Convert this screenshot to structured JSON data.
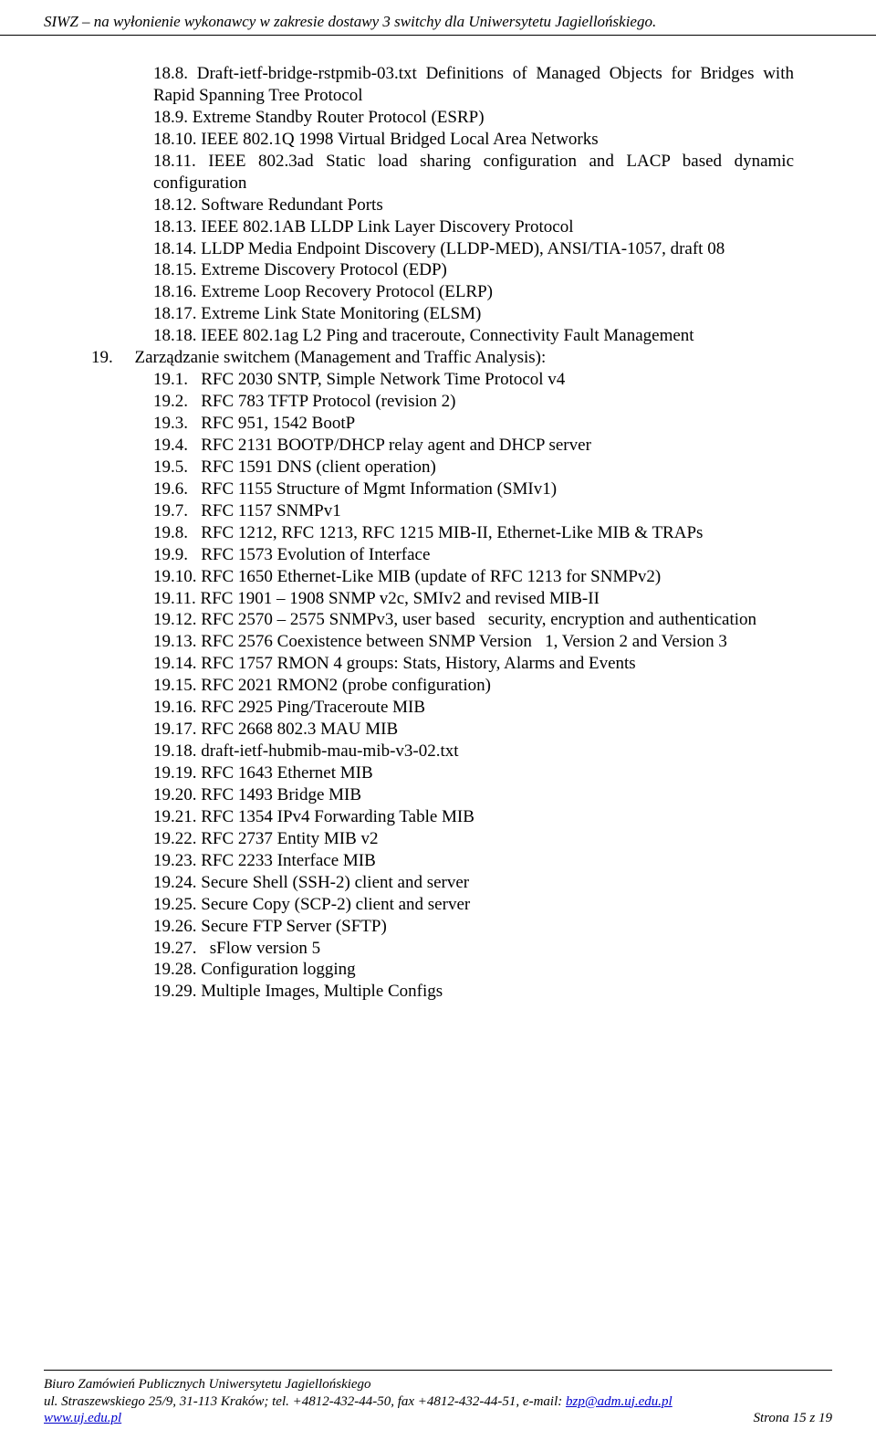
{
  "header": {
    "text": "SIWZ – na wyłonienie wykonawcy w zakresie dostawy 3 switchy dla Uniwersytetu Jagiellońskiego."
  },
  "lines": [
    {
      "cls": "indent-a line",
      "t": "18.8. Draft-ietf-bridge-rstpmib-03.txt Definitions of Managed Objects for Bridges with Rapid Spanning Tree Protocol"
    },
    {
      "cls": "indent-a line-left",
      "t": "18.9. Extreme Standby Router Protocol (ESRP)"
    },
    {
      "cls": "indent-a line-left",
      "t": "18.10. IEEE 802.1Q 1998 Virtual Bridged Local Area Networks"
    },
    {
      "cls": "indent-a line",
      "t": "18.11. IEEE 802.3ad Static load sharing configuration and LACP based dynamic configuration"
    },
    {
      "cls": "indent-a line-left",
      "t": "18.12. Software Redundant Ports"
    },
    {
      "cls": "indent-a line-left",
      "t": "18.13. IEEE 802.1AB LLDP Link Layer Discovery Protocol"
    },
    {
      "cls": "indent-a line",
      "t": "18.14. LLDP Media Endpoint Discovery (LLDP-MED), ANSI/TIA-1057, draft 08"
    },
    {
      "cls": "indent-a line-left",
      "t": "18.15. Extreme Discovery Protocol (EDP)"
    },
    {
      "cls": "indent-a line-left",
      "t": "18.16. Extreme Loop Recovery Protocol (ELRP)"
    },
    {
      "cls": "indent-a line-left",
      "t": "18.17. Extreme Link State Monitoring (ELSM)"
    },
    {
      "cls": "indent-a line-left",
      "t": "18.18. IEEE 802.1ag L2 Ping and traceroute, Connectivity Fault Management"
    },
    {
      "cls": "line-left",
      "t": "19.  Zarządzanie switchem (Management and Traffic Analysis):"
    },
    {
      "cls": "indent-a line-left",
      "t": "19.1.  RFC 2030 SNTP, Simple Network Time Protocol v4"
    },
    {
      "cls": "indent-a line-left",
      "t": "19.2.  RFC 783 TFTP Protocol (revision 2)"
    },
    {
      "cls": "indent-a line-left",
      "t": "19.3.  RFC 951, 1542 BootP"
    },
    {
      "cls": "indent-a line-left",
      "t": "19.4.  RFC 2131 BOOTP/DHCP relay agent and DHCP server"
    },
    {
      "cls": "indent-a line-left",
      "t": "19.5.  RFC 1591 DNS (client operation)"
    },
    {
      "cls": "indent-a line-left",
      "t": "19.6.  RFC 1155 Structure of Mgmt Information (SMIv1)"
    },
    {
      "cls": "indent-a line-left",
      "t": "19.7.  RFC 1157 SNMPv1"
    },
    {
      "cls": "indent-a line",
      "t": "19.8.  RFC 1212, RFC 1213, RFC 1215 MIB-II, Ethernet-Like MIB & TRAPs"
    },
    {
      "cls": "indent-a line-left",
      "t": "19.9.  RFC 1573 Evolution of Interface"
    },
    {
      "cls": "indent-a line-left",
      "t": "19.10. RFC 1650 Ethernet-Like MIB (update of RFC 1213 for SNMPv2)"
    },
    {
      "cls": "indent-a line-left",
      "t": "19.11. RFC 1901 – 1908 SNMP v2c, SMIv2 and revised MIB-II"
    },
    {
      "cls": "indent-a line",
      "t": "19.12. RFC 2570 – 2575 SNMPv3, user based  security, encryption and authentication"
    },
    {
      "cls": "indent-a line",
      "t": "19.13. RFC 2576 Coexistence between SNMP Version  1, Version 2 and Version 3"
    },
    {
      "cls": "indent-a line-left",
      "t": "19.14. RFC 1757 RMON 4 groups: Stats, History, Alarms and Events"
    },
    {
      "cls": "indent-a line-left",
      "t": "19.15. RFC 2021 RMON2 (probe configuration)"
    },
    {
      "cls": "indent-a line-left",
      "t": "19.16. RFC 2925 Ping/Traceroute MIB"
    },
    {
      "cls": "indent-a line-left",
      "t": "19.17. RFC 2668 802.3 MAU MIB"
    },
    {
      "cls": "indent-a line-left",
      "t": "19.18. draft-ietf-hubmib-mau-mib-v3-02.txt"
    },
    {
      "cls": "indent-a line-left",
      "t": "19.19. RFC 1643 Ethernet MIB"
    },
    {
      "cls": "indent-a line-left",
      "t": "19.20. RFC 1493 Bridge MIB"
    },
    {
      "cls": "indent-a line-left",
      "t": "19.21. RFC 1354 IPv4 Forwarding Table MIB"
    },
    {
      "cls": "indent-a line-left",
      "t": "19.22. RFC 2737 Entity MIB v2"
    },
    {
      "cls": "indent-a line-left",
      "t": "19.23. RFC 2233 Interface MIB"
    },
    {
      "cls": "indent-a line-left",
      "t": "19.24. Secure Shell (SSH-2) client and server"
    },
    {
      "cls": "indent-a line-left",
      "t": "19.25. Secure Copy (SCP-2) client and server"
    },
    {
      "cls": "indent-a line-left",
      "t": "19.26. Secure FTP Server (SFTP)"
    },
    {
      "cls": "indent-a line-left",
      "t": "19.27.  sFlow version 5"
    },
    {
      "cls": "indent-a line-left",
      "t": "19.28. Configuration logging"
    },
    {
      "cls": "indent-a line-left",
      "t": "19.29. Multiple Images, Multiple Configs"
    }
  ],
  "footer": {
    "line1": "Biuro Zamówień Publicznych Uniwersytetu Jagiellońskiego",
    "line2_pre": "ul. Straszewskiego 25/9, 31-113 Kraków; tel. +4812-432-44-50, fax +4812-432-44-51, e-mail: ",
    "email": "bzp@adm.uj.edu.pl",
    "site": "www.uj.edu.pl",
    "page": "Strona 15 z 19"
  }
}
